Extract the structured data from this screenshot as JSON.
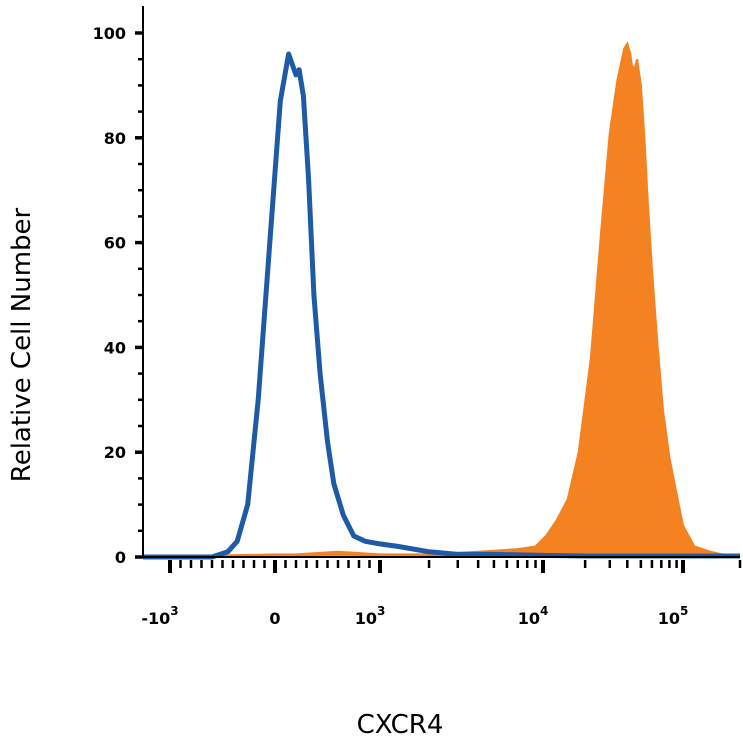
{
  "chart_data": {
    "type": "area",
    "xlabel": "CXCR4",
    "ylabel": "Relative Cell Number",
    "ylim": [
      0,
      100
    ],
    "x_scale": "biexponential",
    "xlim": [
      -1500,
      200000
    ],
    "y_ticks": [
      {
        "value": 0,
        "label": "0"
      },
      {
        "value": 20,
        "label": "20"
      },
      {
        "value": 40,
        "label": "40"
      },
      {
        "value": 60,
        "label": "60"
      },
      {
        "value": 80,
        "label": "80"
      },
      {
        "value": 100,
        "label": "100"
      }
    ],
    "x_ticks": [
      {
        "value": -1000,
        "base": "-10",
        "exp": "3"
      },
      {
        "value": 0,
        "base": "0",
        "exp": ""
      },
      {
        "value": 1000,
        "base": "10",
        "exp": "3"
      },
      {
        "value": 10000,
        "base": "10",
        "exp": "4"
      },
      {
        "value": 100000,
        "base": "10",
        "exp": "5"
      }
    ],
    "series": [
      {
        "color": "#f58220",
        "style": "filled",
        "x": [
          -1500,
          0,
          200,
          600,
          1000,
          2000,
          4000,
          7000,
          9000,
          10500,
          12500,
          15000,
          18000,
          22000,
          26000,
          30000,
          34000,
          38000,
          40000,
          42000,
          43000,
          45000,
          47000,
          50000,
          53000,
          56000,
          60000,
          66000,
          72000,
          80000,
          90000,
          100000,
          115000,
          140000,
          170000,
          200000
        ],
        "y": [
          0,
          0.5,
          0.5,
          1,
          0.5,
          0.5,
          1,
          1.5,
          2,
          4,
          7,
          11,
          20,
          38,
          62,
          81,
          91,
          97,
          98,
          96,
          94,
          93,
          95,
          90,
          80,
          68,
          55,
          40,
          28,
          19,
          12,
          6,
          2,
          1,
          0.3,
          0
        ]
      },
      {
        "color": "#1f5aa6",
        "style": "line",
        "x": [
          -1500,
          -600,
          -450,
          -360,
          -260,
          -160,
          -50,
          50,
          130,
          200,
          230,
          270,
          320,
          370,
          430,
          500,
          560,
          650,
          750,
          860,
          1000,
          1300,
          2000,
          3000,
          5000,
          10000,
          20000,
          50000,
          100000,
          200000
        ],
        "y": [
          0,
          0,
          1,
          3,
          10,
          30,
          60,
          87,
          96,
          92,
          93,
          88,
          72,
          50,
          35,
          22,
          14,
          8,
          4,
          3,
          2.5,
          2,
          1,
          0.5,
          0.5,
          0.3,
          0.2,
          0.2,
          0.2,
          0.2
        ]
      }
    ]
  }
}
